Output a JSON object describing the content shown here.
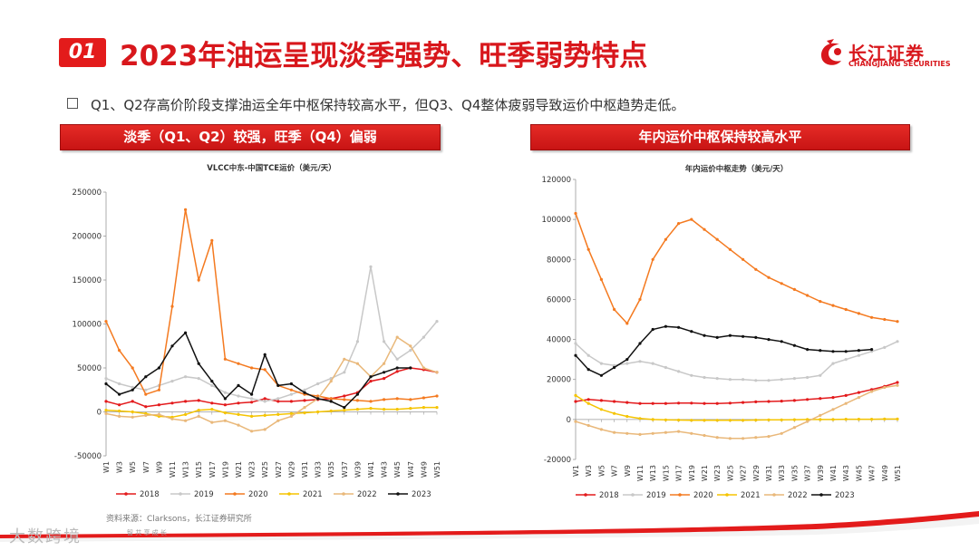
{
  "header": {
    "section_number": "01",
    "title": "2023年油运呈现淡季强势、旺季弱势特点"
  },
  "logo": {
    "name_cn": "长江证券",
    "name_en": "CHANGJIANG SECURITIES"
  },
  "bullet": "Q1、Q2存高价阶段支撑油运全年中枢保持较高水平，但Q3、Q4整体疲弱导致运价中枢趋势走低。",
  "panels": {
    "left_banner": "淡季（Q1、Q2）较强，旺季（Q4）偏弱",
    "right_banner": "年内运价中枢保持较高水平"
  },
  "source": "资料来源：Clarksons，长江证券研究所",
  "footer": {
    "watermark": "大数跨境",
    "small_text": "智          共 享 成 长"
  },
  "colors": {
    "2018": "#e31a1c",
    "2019": "#c8c8c8",
    "2020": "#f47a20",
    "2021": "#f5c400",
    "2022": "#e9b87a",
    "2023": "#111111",
    "accent": "#d8171c"
  },
  "chart_data": [
    {
      "type": "line",
      "title": "VLCC中东-中国TCE运价（美元/天）",
      "x": [
        "W1",
        "W3",
        "W5",
        "W7",
        "W9",
        "W11",
        "W13",
        "W15",
        "W17",
        "W19",
        "W21",
        "W23",
        "W25",
        "W27",
        "W29",
        "W31",
        "W33",
        "W35",
        "W37",
        "W39",
        "W41",
        "W43",
        "W45",
        "W47",
        "W49",
        "W51"
      ],
      "ylim": [
        -50000,
        250000
      ],
      "yticks": [
        -50000,
        0,
        50000,
        100000,
        150000,
        200000,
        250000
      ],
      "legend_position": "bottom",
      "grid": false,
      "series": [
        {
          "name": "2018",
          "values": [
            12000,
            8000,
            12000,
            6000,
            8000,
            10000,
            12000,
            13000,
            10000,
            8000,
            10000,
            11000,
            15000,
            12000,
            12000,
            13000,
            14000,
            15000,
            18000,
            22000,
            35000,
            38000,
            46000,
            50000,
            48000,
            45000
          ]
        },
        {
          "name": "2019",
          "values": [
            38000,
            32000,
            28000,
            25000,
            30000,
            35000,
            40000,
            38000,
            30000,
            22000,
            18000,
            15000,
            12000,
            15000,
            20000,
            25000,
            32000,
            38000,
            45000,
            80000,
            165000,
            80000,
            60000,
            70000,
            85000,
            103000
          ]
        },
        {
          "name": "2020",
          "values": [
            103000,
            70000,
            50000,
            20000,
            25000,
            120000,
            230000,
            150000,
            195000,
            60000,
            55000,
            50000,
            48000,
            30000,
            25000,
            20000,
            18000,
            15000,
            14000,
            13000,
            12000,
            14000,
            15000,
            14000,
            16000,
            18000
          ]
        },
        {
          "name": "2021",
          "values": [
            2000,
            1000,
            0,
            -2000,
            -5000,
            -6000,
            -3000,
            2000,
            3000,
            -1000,
            -3000,
            -5000,
            -4000,
            -3000,
            -2000,
            -1000,
            0,
            1000,
            2000,
            3000,
            4000,
            3000,
            3000,
            4000,
            5000,
            5000
          ]
        },
        {
          "name": "2022",
          "values": [
            -2000,
            -5000,
            -6000,
            -4000,
            -3000,
            -8000,
            -10000,
            -5000,
            -12000,
            -10000,
            -15000,
            -22000,
            -20000,
            -10000,
            -5000,
            5000,
            15000,
            35000,
            60000,
            55000,
            40000,
            55000,
            85000,
            75000,
            50000,
            45000
          ]
        },
        {
          "name": "2023",
          "values": [
            32000,
            20000,
            25000,
            40000,
            50000,
            75000,
            90000,
            55000,
            35000,
            15000,
            30000,
            20000,
            65000,
            30000,
            32000,
            22000,
            15000,
            12000,
            5000,
            20000,
            40000,
            45000,
            50000,
            50000,
            null,
            null
          ]
        }
      ]
    },
    {
      "type": "line",
      "title": "年内运价中枢走势（美元/天）",
      "x": [
        "W1",
        "W3",
        "W5",
        "W7",
        "W9",
        "W11",
        "W13",
        "W15",
        "W17",
        "W19",
        "W21",
        "W23",
        "W25",
        "W27",
        "W29",
        "W31",
        "W33",
        "W35",
        "W37",
        "W39",
        "W41",
        "W43",
        "W45",
        "W47",
        "W49",
        "W51"
      ],
      "ylim": [
        -20000,
        120000
      ],
      "yticks": [
        -20000,
        0,
        20000,
        40000,
        60000,
        80000,
        100000,
        120000
      ],
      "legend_position": "bottom",
      "grid": false,
      "series": [
        {
          "name": "2018",
          "values": [
            9000,
            10000,
            9500,
            9000,
            8500,
            8000,
            8000,
            8000,
            8200,
            8200,
            8000,
            8000,
            8200,
            8500,
            8800,
            9000,
            9200,
            9500,
            10000,
            10500,
            11000,
            12000,
            13500,
            15000,
            16500,
            18500
          ]
        },
        {
          "name": "2019",
          "values": [
            38000,
            32000,
            28000,
            27000,
            28000,
            29000,
            28000,
            26000,
            24000,
            22000,
            21000,
            20500,
            20000,
            20000,
            19500,
            19500,
            20000,
            20500,
            21000,
            22000,
            28000,
            30000,
            32000,
            34000,
            36000,
            39000
          ]
        },
        {
          "name": "2020",
          "values": [
            103000,
            85000,
            70000,
            55000,
            48000,
            60000,
            80000,
            90000,
            98000,
            100000,
            95000,
            90000,
            85000,
            80000,
            75000,
            71000,
            68000,
            65000,
            62000,
            59000,
            57000,
            55000,
            53000,
            51000,
            50000,
            49000
          ]
        },
        {
          "name": "2021",
          "values": [
            12000,
            8000,
            5000,
            3000,
            1500,
            500,
            0,
            -200,
            -300,
            -400,
            -400,
            -400,
            -400,
            -400,
            -300,
            -200,
            -200,
            -100,
            0,
            0,
            0,
            100,
            100,
            100,
            200,
            200
          ]
        },
        {
          "name": "2022",
          "values": [
            -1000,
            -3000,
            -5000,
            -6500,
            -7000,
            -7500,
            -7000,
            -6500,
            -6000,
            -7000,
            -8000,
            -9000,
            -9500,
            -9500,
            -9000,
            -8500,
            -7000,
            -4000,
            -1000,
            2000,
            5000,
            8000,
            11000,
            14000,
            16000,
            17000
          ]
        },
        {
          "name": "2023",
          "values": [
            32000,
            25000,
            22000,
            26000,
            30000,
            38000,
            45000,
            46500,
            46000,
            44000,
            42000,
            41000,
            42000,
            41500,
            41000,
            40000,
            39000,
            37000,
            35000,
            34500,
            34000,
            34000,
            34500,
            35000,
            null,
            null
          ]
        }
      ]
    }
  ]
}
